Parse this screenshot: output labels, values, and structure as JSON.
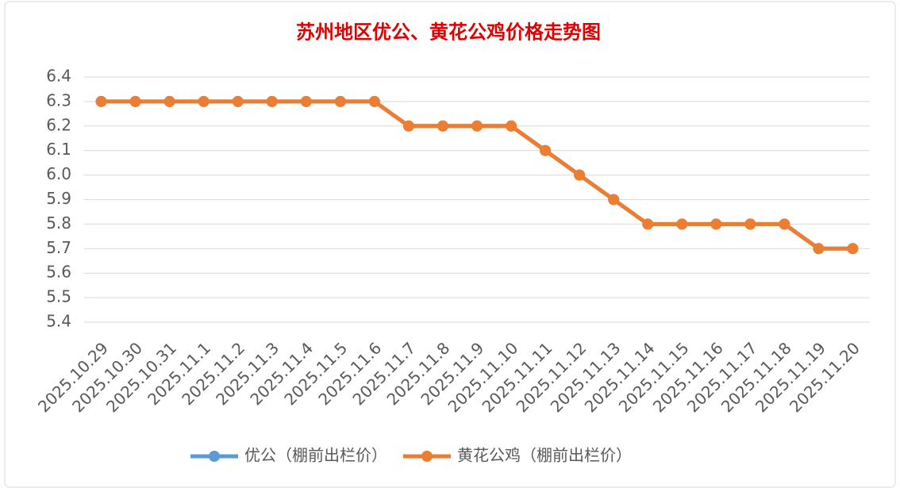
{
  "chart_data": {
    "type": "line",
    "title": "苏州地区优公、黄花公鸡价格走势图",
    "categories": [
      "2025.10.29",
      "2025.10.30",
      "2025.10.31",
      "2025.11.1",
      "2025.11.2",
      "2025.11.3",
      "2025.11.4",
      "2025.11.5",
      "2025.11.6",
      "2025.11.7",
      "2025.11.8",
      "2025.11.9",
      "2025.11.10",
      "2025.11.11",
      "2025.11.12",
      "2025.11.13",
      "2025.11.14",
      "2025.11.15",
      "2025.11.16",
      "2025.11.17",
      "2025.11.18",
      "2025.11.19",
      "2025.11.20"
    ],
    "series": [
      {
        "name": "优公（棚前出栏价）",
        "color": "#5b9bd5",
        "values": [
          6.3,
          6.3,
          6.3,
          6.3,
          6.3,
          6.3,
          6.3,
          6.3,
          6.3,
          6.2,
          6.2,
          6.2,
          6.2,
          6.1,
          6.0,
          5.9,
          5.8,
          5.8,
          5.8,
          5.8,
          5.8,
          5.7,
          5.7
        ]
      },
      {
        "name": "黄花公鸡（棚前出栏价）",
        "color": "#ed7d31",
        "values": [
          6.3,
          6.3,
          6.3,
          6.3,
          6.3,
          6.3,
          6.3,
          6.3,
          6.3,
          6.2,
          6.2,
          6.2,
          6.2,
          6.1,
          6.0,
          5.9,
          5.8,
          5.8,
          5.8,
          5.8,
          5.8,
          5.7,
          5.7
        ]
      }
    ],
    "ylim": [
      5.4,
      6.4
    ],
    "yticks": [
      5.4,
      5.5,
      5.6,
      5.7,
      5.8,
      5.9,
      {
        "value": 6,
        "label": "6.0"
      },
      6.1,
      6.2,
      6.3,
      6.4
    ],
    "grid": true,
    "legend": "bottom"
  }
}
